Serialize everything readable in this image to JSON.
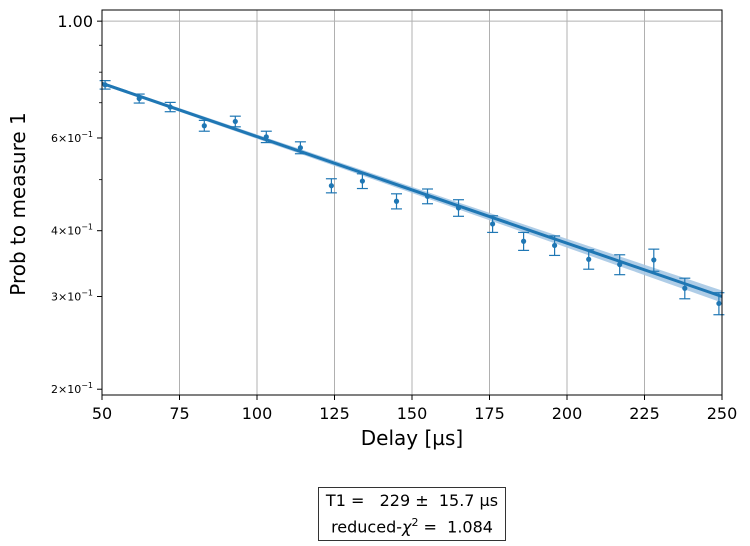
{
  "chart_data": {
    "type": "scatter",
    "title": "",
    "xlabel": "Delay [µs]",
    "ylabel": "Prob to measure 1",
    "xlim": [
      50,
      250
    ],
    "ylim": [
      0.195,
      1.05
    ],
    "yscale": "log",
    "grid": "vertical-and-1.0-line",
    "xticks": [
      50,
      75,
      100,
      125,
      150,
      175,
      200,
      225,
      250
    ],
    "xtick_labels": [
      "50",
      "75",
      "100",
      "125",
      "150",
      "175",
      "200",
      "225",
      "250"
    ],
    "yticks": [
      {
        "value": 1.0,
        "base": "1.00",
        "exp": ""
      },
      {
        "value": 0.6,
        "base": "6×10",
        "exp": "−1"
      },
      {
        "value": 0.4,
        "base": "4×10",
        "exp": "−1"
      },
      {
        "value": 0.3,
        "base": "3×10",
        "exp": "−1"
      },
      {
        "value": 0.2,
        "base": "2×10",
        "exp": "−1"
      }
    ],
    "minor_yticks": [
      0.9,
      0.8,
      0.7,
      0.5
    ],
    "series": [
      {
        "kind": "points-with-errorbars",
        "x": [
          51,
          62,
          72,
          83,
          93,
          103,
          114,
          124,
          134,
          145,
          155,
          165,
          176,
          186,
          196,
          207,
          217,
          228,
          238,
          249
        ],
        "y": [
          0.757,
          0.713,
          0.687,
          0.633,
          0.645,
          0.603,
          0.575,
          0.487,
          0.497,
          0.455,
          0.465,
          0.442,
          0.412,
          0.382,
          0.375,
          0.353,
          0.345,
          0.352,
          0.311,
          0.291
        ],
        "yerr": [
          0.014,
          0.014,
          0.014,
          0.015,
          0.015,
          0.015,
          0.015,
          0.015,
          0.016,
          0.015,
          0.015,
          0.016,
          0.015,
          0.015,
          0.016,
          0.015,
          0.015,
          0.017,
          0.014,
          0.014
        ]
      },
      {
        "kind": "fit-line",
        "x": [
          50,
          250
        ],
        "y": [
          0.762,
          0.3
        ],
        "band_halfwidth_start": 0.005,
        "band_halfwidth_end": 0.008
      }
    ],
    "colors": {
      "points": "#1f77b4",
      "fit": "#1f77b4",
      "band": "#a6c8e4",
      "grid": "#b0b0b0"
    }
  },
  "fit_box": {
    "t1_line": "T1 =   229 ±  15.7 µs",
    "chi_prefix": "reduced-",
    "chi_symbol": "χ",
    "chi_exp": "2",
    "chi_suffix": " =  1.084"
  }
}
